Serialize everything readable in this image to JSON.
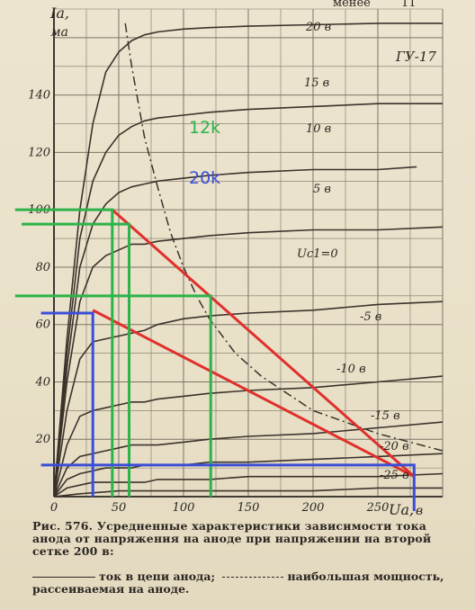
{
  "header": {
    "word": "менее",
    "page_number": "11"
  },
  "chart_data": {
    "type": "line",
    "tube_label": "ГУ-17",
    "y_axis_symbol": "Iа,",
    "y_axis_unit": "ма",
    "x_axis_symbol": "Uа,",
    "x_axis_unit": "в",
    "xlim": [
      0,
      300
    ],
    "ylim": [
      0,
      170
    ],
    "x_ticks": [
      0,
      50,
      100,
      150,
      200,
      250
    ],
    "x_tick_labels": [
      "0",
      "50",
      "100",
      "150",
      "200",
      "250"
    ],
    "y_ticks": [
      20,
      40,
      60,
      80,
      100,
      120,
      140
    ],
    "y_tick_labels": [
      "20",
      "40",
      "60",
      "80",
      "100",
      "120",
      "140"
    ],
    "grid": true,
    "series": [
      {
        "name": "20 в",
        "x": [
          0,
          10,
          20,
          30,
          40,
          50,
          60,
          70,
          80,
          100,
          120,
          150,
          200,
          250,
          300
        ],
        "y": [
          0,
          55,
          100,
          130,
          148,
          155,
          159,
          161,
          162,
          163,
          163.5,
          164,
          164.5,
          165,
          165
        ]
      },
      {
        "name": "15 в",
        "x": [
          0,
          10,
          20,
          30,
          40,
          50,
          60,
          70,
          80,
          100,
          120,
          150,
          200,
          250,
          300
        ],
        "y": [
          0,
          50,
          90,
          110,
          120,
          126,
          129,
          131,
          132,
          133,
          134,
          135,
          136,
          137,
          137
        ]
      },
      {
        "name": "10 в",
        "x": [
          0,
          10,
          20,
          30,
          40,
          50,
          60,
          70,
          80,
          100,
          120,
          150,
          200,
          250,
          280
        ],
        "y": [
          0,
          45,
          80,
          95,
          102,
          106,
          108,
          109,
          110,
          111,
          112,
          113,
          114,
          114,
          115
        ]
      },
      {
        "name": "5 в",
        "x": [
          0,
          10,
          20,
          30,
          40,
          50,
          60,
          70,
          80,
          100,
          120,
          150,
          200,
          250,
          300
        ],
        "y": [
          0,
          40,
          68,
          80,
          84,
          86,
          88,
          88,
          89,
          90,
          91,
          92,
          93,
          93,
          94
        ]
      },
      {
        "name": "Uc1=0",
        "x": [
          0,
          10,
          20,
          30,
          40,
          50,
          60,
          70,
          80,
          100,
          120,
          150,
          200,
          250,
          300
        ],
        "y": [
          0,
          30,
          48,
          54,
          55,
          56,
          57,
          58,
          60,
          62,
          63,
          64,
          65,
          67,
          68
        ]
      },
      {
        "name": "-5 в",
        "x": [
          0,
          10,
          20,
          30,
          40,
          50,
          60,
          70,
          80,
          100,
          120,
          150,
          200,
          250,
          300
        ],
        "y": [
          0,
          18,
          28,
          30,
          31,
          32,
          33,
          33,
          34,
          35,
          36,
          37,
          38,
          40,
          42
        ]
      },
      {
        "name": "-10 в",
        "x": [
          0,
          10,
          20,
          30,
          40,
          50,
          60,
          70,
          80,
          100,
          120,
          150,
          200,
          250,
          300
        ],
        "y": [
          0,
          10,
          14,
          15,
          16,
          17,
          18,
          18,
          18,
          19,
          20,
          21,
          22,
          24,
          26
        ]
      },
      {
        "name": "-15 в",
        "x": [
          0,
          10,
          20,
          30,
          40,
          50,
          60,
          70,
          80,
          100,
          120,
          150,
          200,
          250,
          300
        ],
        "y": [
          0,
          6,
          8,
          9,
          10,
          10,
          10,
          11,
          11,
          11,
          12,
          12,
          13,
          14,
          15
        ]
      },
      {
        "name": "-20 в",
        "x": [
          0,
          10,
          20,
          30,
          40,
          50,
          60,
          70,
          80,
          100,
          120,
          150,
          200,
          250,
          300
        ],
        "y": [
          0,
          3,
          4,
          5,
          5,
          5,
          5,
          5,
          6,
          6,
          6,
          7,
          7,
          7,
          8
        ]
      },
      {
        "name": "-25 в",
        "x": [
          0,
          20,
          50,
          100,
          150,
          200,
          250,
          300
        ],
        "y": [
          0,
          1,
          2,
          2,
          2,
          2,
          3,
          3
        ]
      }
    ],
    "max_dissipation_curve": {
      "x": [
        55,
        60,
        70,
        80,
        90,
        100,
        110,
        120,
        140,
        160,
        200,
        250,
        300
      ],
      "y": [
        165,
        150,
        125,
        108,
        92,
        80,
        70,
        62,
        50,
        42,
        30,
        22,
        16
      ]
    },
    "overlays": {
      "labels": [
        {
          "text": "12k",
          "color": "#2cb34a"
        },
        {
          "text": "20k",
          "color": "#3b4fd6"
        }
      ],
      "red_load_lines": [
        {
          "x": [
            45,
            278
          ],
          "y": [
            100,
            7
          ]
        },
        {
          "x": [
            30,
            278
          ],
          "y": [
            65,
            7
          ]
        }
      ],
      "green_lines": [
        {
          "x": [
            -30,
            45,
            45
          ],
          "y": [
            100,
            100,
            0
          ]
        },
        {
          "x": [
            -25,
            58,
            58
          ],
          "y": [
            95,
            95,
            0
          ]
        },
        {
          "x": [
            -30,
            121,
            121
          ],
          "y": [
            70,
            70,
            0
          ]
        }
      ],
      "blue_lines": [
        {
          "x": [
            -10,
            30,
            30
          ],
          "y": [
            64,
            64,
            0
          ]
        },
        {
          "x": [
            -10,
            278,
            278
          ],
          "y": [
            11,
            11,
            -5
          ]
        }
      ]
    }
  },
  "caption": {
    "line1": "Рис. 576. Усредненные характеристики зависимости тока",
    "line2": "анода от напряжения на аноде при напряжении на второй",
    "line3": "сетке 200 в:"
  },
  "legend": {
    "solid_text": "ток в цепи анода;",
    "dash_text": "наибольшая мощность,",
    "line2": "рассеиваемая на аноде."
  },
  "colors": {
    "red": "#e0302c",
    "green": "#2cb34a",
    "blue": "#3b4fd6",
    "ink": "#2b2620"
  }
}
